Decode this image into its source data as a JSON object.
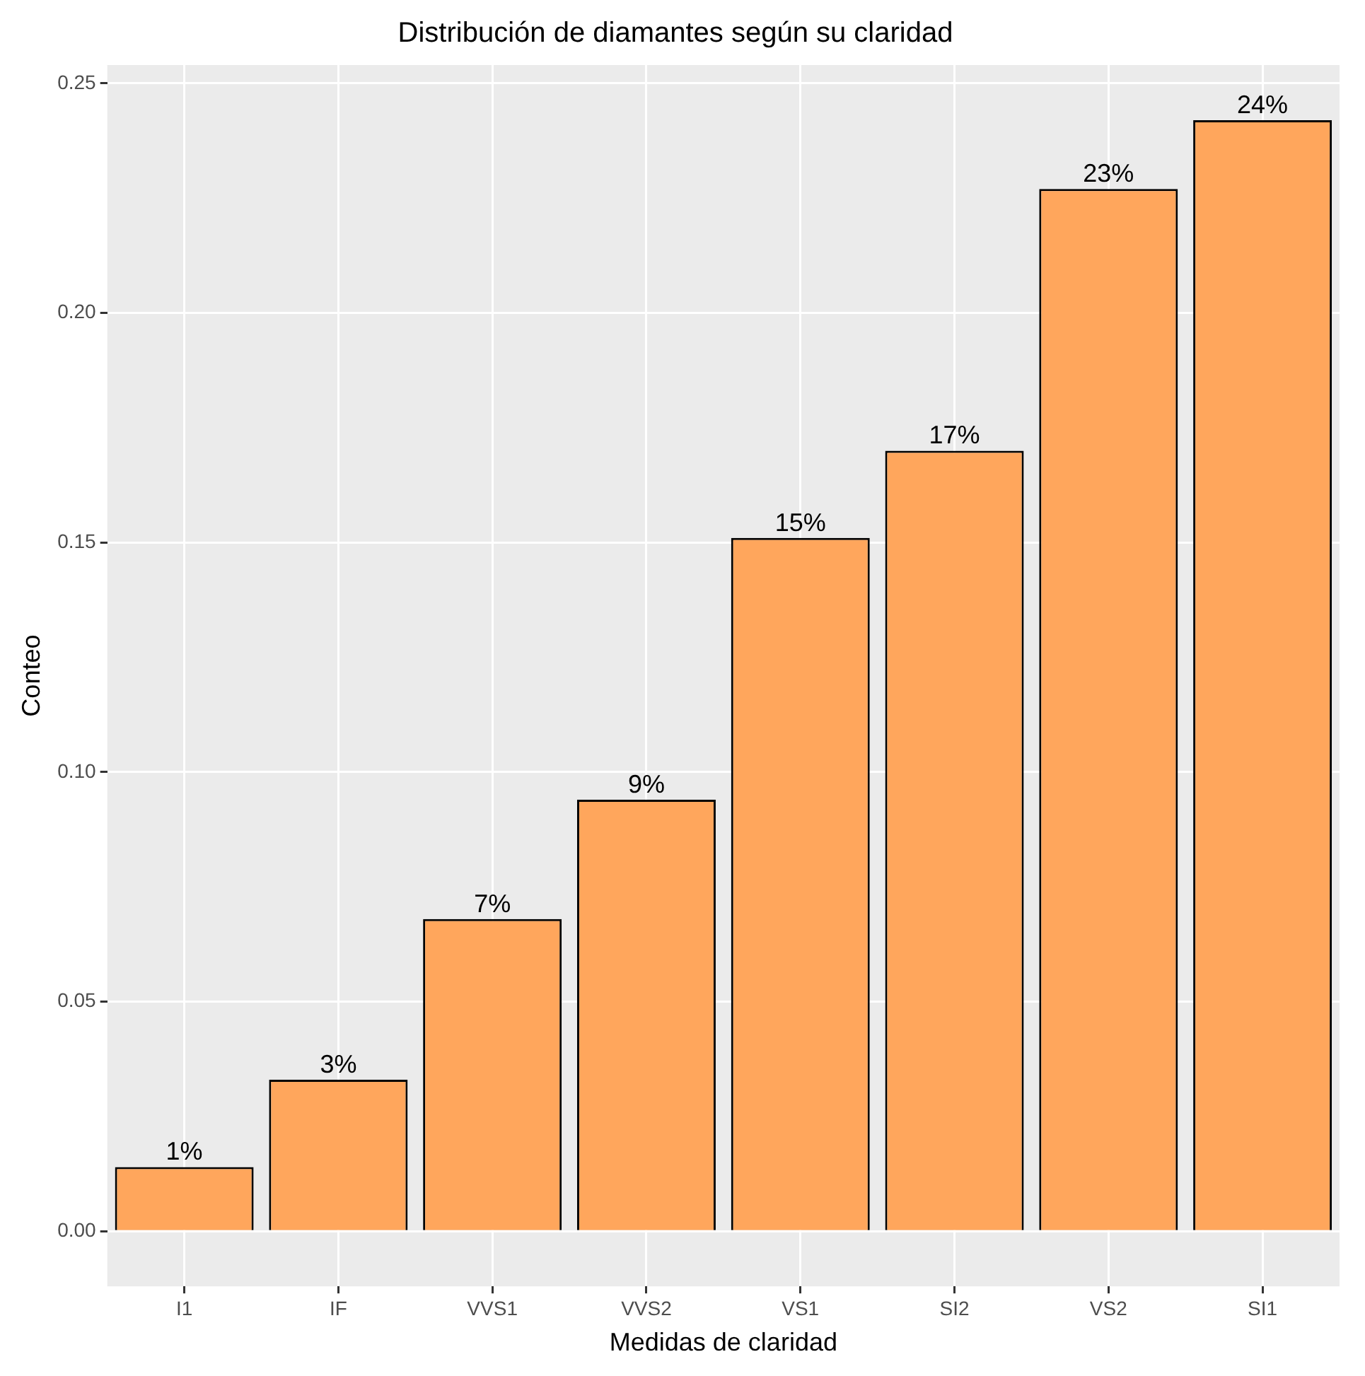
{
  "chart_data": {
    "type": "bar",
    "title": "Distribución de diamantes según su claridad",
    "xlabel": "Medidas de claridad",
    "ylabel": "Conteo",
    "categories": [
      "I1",
      "IF",
      "VVS1",
      "VVS2",
      "VS1",
      "SI2",
      "VS2",
      "SI1"
    ],
    "values": [
      0.014,
      0.033,
      0.068,
      0.094,
      0.151,
      0.17,
      0.227,
      0.242
    ],
    "value_labels": [
      "1%",
      "3%",
      "7%",
      "9%",
      "15%",
      "17%",
      "23%",
      "24%"
    ],
    "color": "#ffa65c",
    "ylim": [
      -0.012,
      0.254
    ],
    "yticks": [
      {
        "value": 0,
        "label": "0.00"
      },
      {
        "value": 0.05,
        "label": "0.05"
      },
      {
        "value": 0.1,
        "label": "0.10"
      },
      {
        "value": 0.15,
        "label": "0.15"
      },
      {
        "value": 0.2,
        "label": "0.20"
      },
      {
        "value": 0.25,
        "label": "0.25"
      }
    ],
    "grid": true,
    "legend": false
  }
}
